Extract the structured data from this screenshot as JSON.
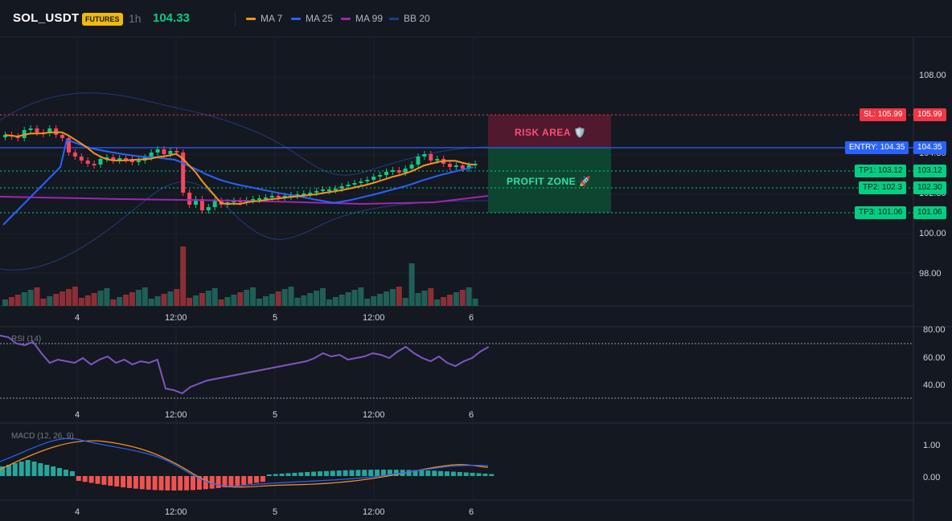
{
  "header": {
    "symbol": "SOL_USDT",
    "badge": "FUTURES",
    "timeframe": "1h",
    "price": "104.33",
    "legend": [
      {
        "label": "MA 7",
        "color": "#f7931a"
      },
      {
        "label": "MA 25",
        "color": "#2962ff"
      },
      {
        "label": "MA 99",
        "color": "#9c27b0"
      },
      {
        "label": "BB 20",
        "color": "#1e3a8a"
      }
    ]
  },
  "main": {
    "price_axis": [
      "108.00",
      "104.35",
      "102.30",
      "100.00",
      "98.00"
    ],
    "time_axis": [
      "4",
      "12:00",
      "5",
      "12:00",
      "6"
    ],
    "levels": {
      "sl_tag": "SL: 105.99",
      "sl_value": "105.99",
      "entry_tag": "ENTRY: 104.35",
      "entry_value": "104.35",
      "tp1_tag": "TP1: 103.12",
      "tp1_value": "103.12",
      "tp2_tag": "TP2: 102.3",
      "tp2_value": "102.30",
      "tp3_tag": "TP3: 101.06",
      "tp3_value": "101.06"
    },
    "zones": {
      "risk_label": "RISK AREA 🛡️",
      "profit_label": "PROFIT ZONE 🚀"
    },
    "colors": {
      "up": "#26a69a",
      "down": "#ef5350",
      "sl": "#f23645",
      "entry": "#2962ff",
      "tp": "#00d084"
    }
  },
  "rsi": {
    "title": "RSI (14)",
    "axis": [
      "80.00",
      "60.00",
      "40.00"
    ],
    "time_axis": [
      "4",
      "12:00",
      "5",
      "12:00",
      "6"
    ]
  },
  "macd": {
    "title": "MACD (12, 26, 9)",
    "axis": [
      "1.00",
      "0.00"
    ],
    "time_axis": [
      "4",
      "12:00",
      "5",
      "12:00",
      "6"
    ]
  }
}
